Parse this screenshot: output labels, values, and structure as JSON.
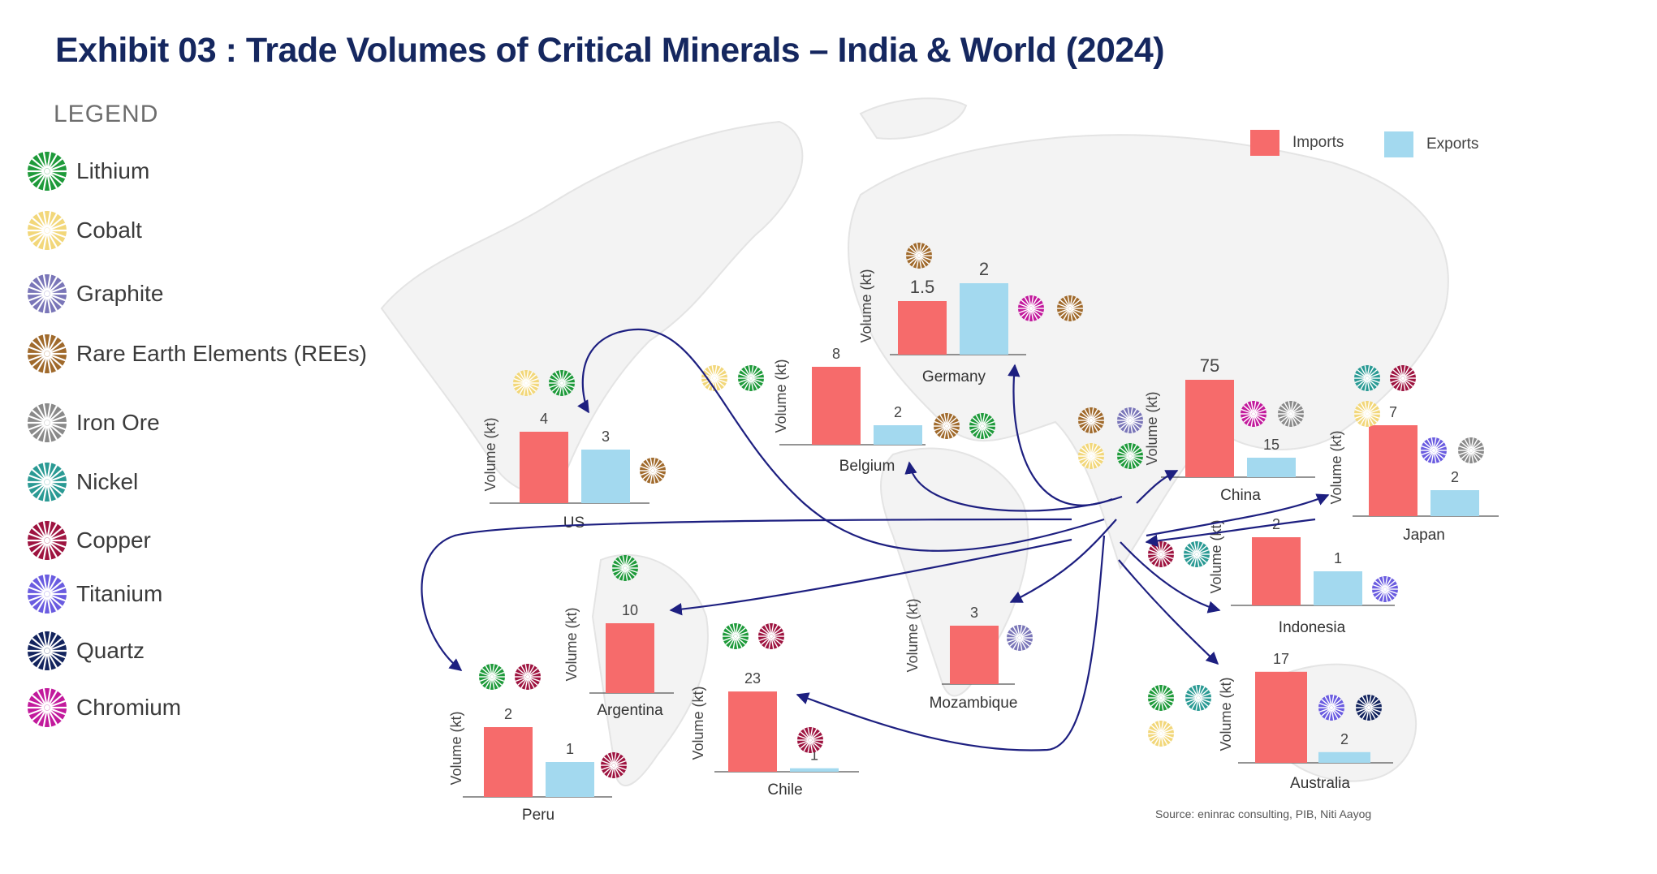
{
  "title": "Exhibit 03 : Trade Volumes of Critical Minerals – India & World (2024)",
  "legend": {
    "heading": "LEGEND",
    "items": [
      {
        "key": "lithium",
        "label": "Lithium",
        "color": "#1e9a3a"
      },
      {
        "key": "cobalt",
        "label": "Cobalt",
        "color": "#f2d77a"
      },
      {
        "key": "graphite",
        "label": "Graphite",
        "color": "#7a76b8"
      },
      {
        "key": "rees",
        "label": "Rare Earth Elements (REEs)",
        "color": "#a06a2c"
      },
      {
        "key": "iron",
        "label": "Iron Ore",
        "color": "#8a8a8a"
      },
      {
        "key": "nickel",
        "label": "Nickel",
        "color": "#2a9a94"
      },
      {
        "key": "copper",
        "label": "Copper",
        "color": "#9e1440"
      },
      {
        "key": "titanium",
        "label": "Titanium",
        "color": "#6a5ce0"
      },
      {
        "key": "quartz",
        "label": "Quartz",
        "color": "#13245e"
      },
      {
        "key": "chromium",
        "label": "Chromium",
        "color": "#c21a9c"
      }
    ]
  },
  "series_key": {
    "imports": "Imports",
    "exports": "Exports"
  },
  "colors": {
    "imports": "#f66b6b",
    "exports": "#a3d9ef",
    "arrow": "#1d1f80",
    "title": "#15275f"
  },
  "source": "Source: eninrac consulting, PIB, Niti Aayog",
  "chart_data": {
    "type": "bar",
    "series_names": [
      "Imports",
      "Exports"
    ],
    "ylabel": "Volume (kt)",
    "countries": [
      {
        "name": "US",
        "imports": 4,
        "exports": 3,
        "minerals": [
          "cobalt",
          "lithium",
          "rees"
        ]
      },
      {
        "name": "Belgium",
        "imports": 8,
        "exports": 2,
        "minerals": [
          "cobalt",
          "lithium",
          "rees",
          "lithium"
        ]
      },
      {
        "name": "Germany",
        "imports": 1.5,
        "exports": 2,
        "minerals": [
          "rees",
          "chromium",
          "rees"
        ]
      },
      {
        "name": "China",
        "imports": 75,
        "exports": 15,
        "minerals": [
          "rees",
          "graphite",
          "cobalt",
          "lithium",
          "chromium",
          "iron"
        ]
      },
      {
        "name": "Japan",
        "imports": 7,
        "exports": 2,
        "minerals": [
          "nickel",
          "copper",
          "cobalt",
          "titanium",
          "iron"
        ]
      },
      {
        "name": "Indonesia",
        "imports": 2,
        "exports": 1,
        "minerals": [
          "copper",
          "nickel",
          "titanium"
        ]
      },
      {
        "name": "Australia",
        "imports": 17,
        "exports": 2,
        "minerals": [
          "lithium",
          "nickel",
          "cobalt",
          "titanium",
          "quartz"
        ]
      },
      {
        "name": "Mozambique",
        "imports": 3,
        "exports": null,
        "minerals": [
          "graphite"
        ]
      },
      {
        "name": "Argentina",
        "imports": 10,
        "exports": null,
        "minerals": [
          "lithium"
        ]
      },
      {
        "name": "Chile",
        "imports": 23,
        "exports": 1,
        "minerals": [
          "lithium",
          "copper",
          "copper"
        ]
      },
      {
        "name": "Peru",
        "imports": 2,
        "exports": 1,
        "minerals": [
          "lithium",
          "copper",
          "copper"
        ]
      }
    ]
  }
}
